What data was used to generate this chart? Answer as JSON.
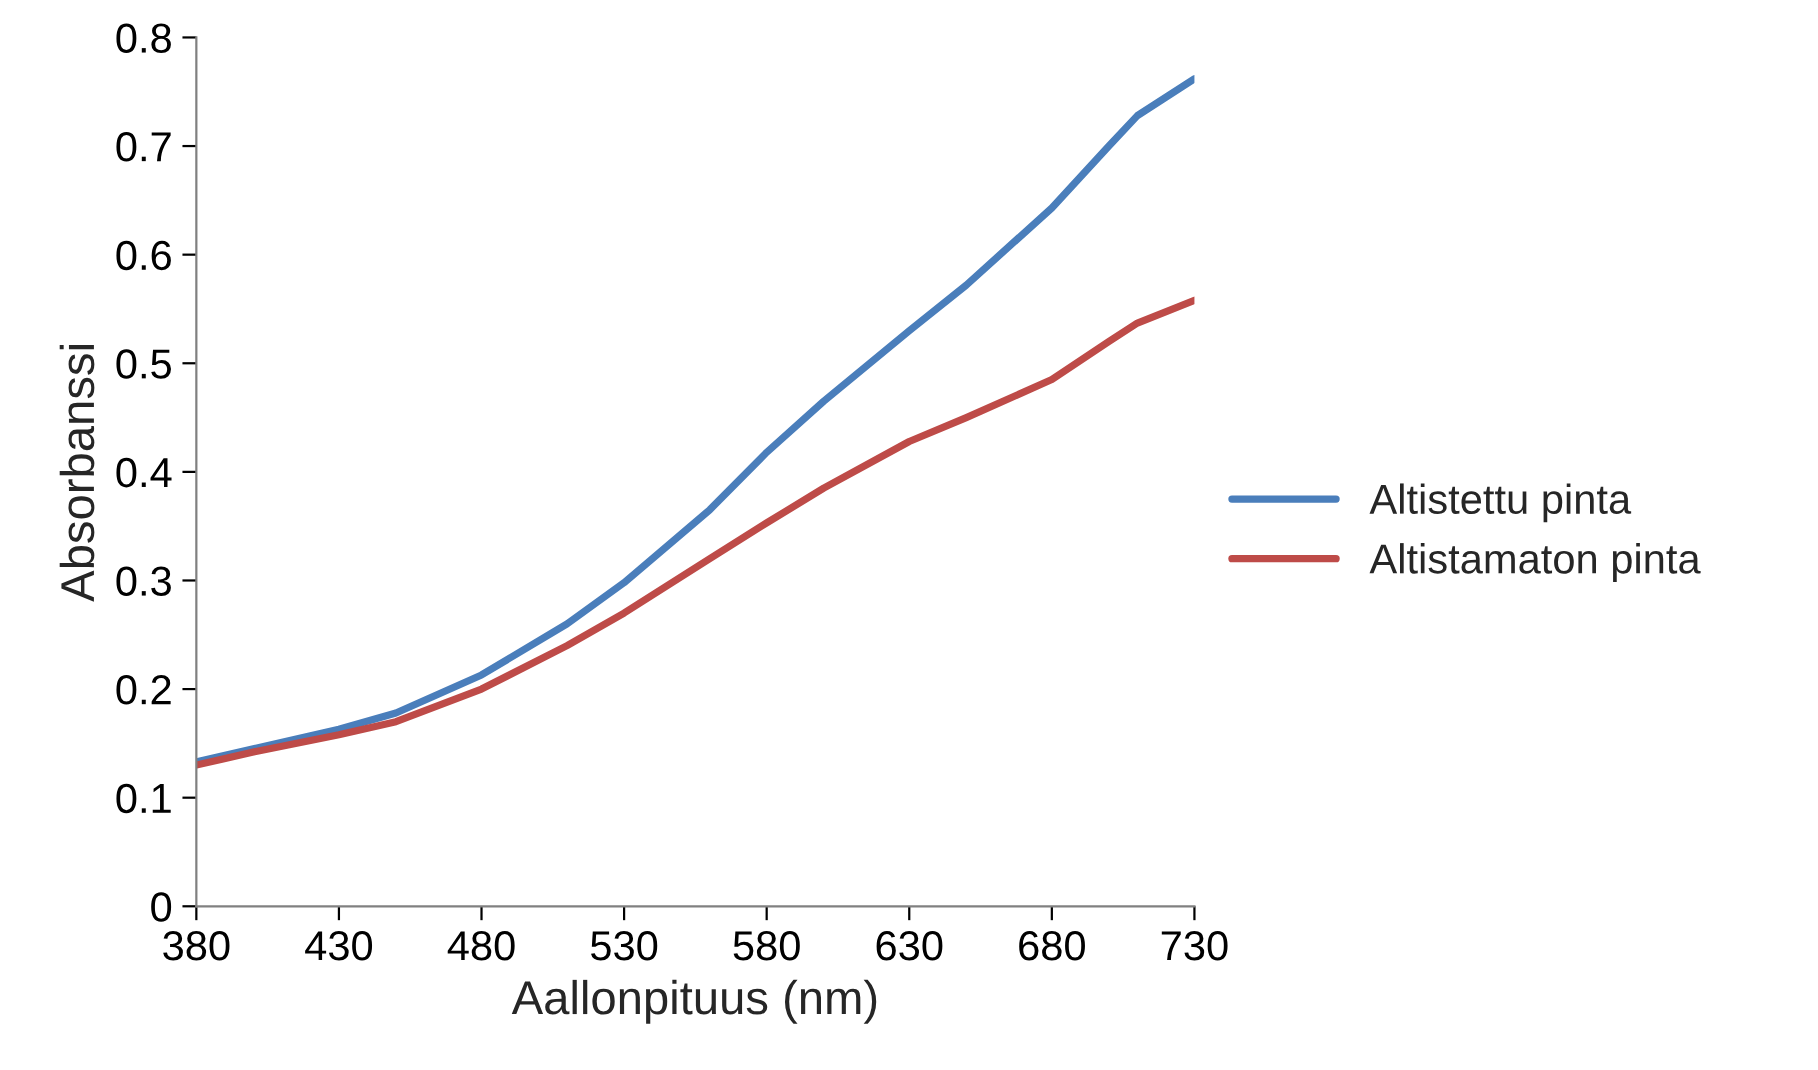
{
  "chart_data": {
    "type": "line",
    "xlabel": "Aallonpituus (nm)",
    "ylabel": "Absorbanssi",
    "x": [
      380,
      400,
      430,
      450,
      480,
      510,
      530,
      560,
      580,
      600,
      630,
      650,
      680,
      700,
      710,
      730
    ],
    "series": [
      {
        "name": "Altistettu pinta",
        "color": "#4a7ebb",
        "values": [
          0.133,
          0.145,
          0.163,
          0.178,
          0.213,
          0.26,
          0.298,
          0.365,
          0.418,
          0.465,
          0.53,
          0.572,
          0.643,
          0.7,
          0.728,
          0.762
        ]
      },
      {
        "name": "Altistamaton pinta",
        "color": "#be4b48",
        "values": [
          0.13,
          0.142,
          0.158,
          0.17,
          0.2,
          0.24,
          0.27,
          0.32,
          0.353,
          0.385,
          0.428,
          0.45,
          0.485,
          0.52,
          0.537,
          0.558
        ]
      }
    ],
    "xlim": [
      380,
      730
    ],
    "xticks": [
      380,
      430,
      480,
      530,
      580,
      630,
      680,
      730
    ],
    "ylim": [
      0,
      0.8
    ],
    "yticks": [
      0,
      0.1,
      0.2,
      0.3,
      0.4,
      0.5,
      0.6,
      0.7,
      0.8
    ],
    "grid": false,
    "legend": "right",
    "marker": "none",
    "line_style": "solid"
  }
}
